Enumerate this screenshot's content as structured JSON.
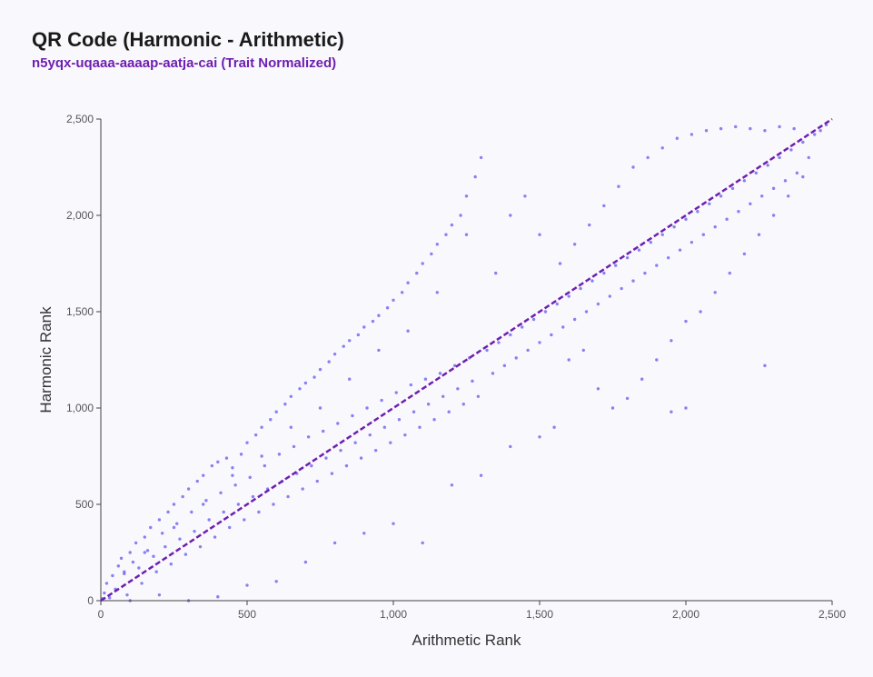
{
  "header": {
    "title": "QR Code (Harmonic - Arithmetic)",
    "subtitle": "n5yqx-uqaaa-aaaap-aatja-cai (Trait Normalized)"
  },
  "colors": {
    "points": "#6b63ee",
    "diagonal": "#6e1fb0",
    "axis": "#444444"
  },
  "chart_data": {
    "type": "scatter",
    "xlabel": "Arithmetic Rank",
    "ylabel": "Harmonic Rank",
    "xlim": [
      0,
      2500
    ],
    "ylim": [
      0,
      2500
    ],
    "xticks": [
      0,
      500,
      1000,
      1500,
      2000,
      2500
    ],
    "yticks": [
      0,
      500,
      1000,
      1500,
      2000,
      2500
    ],
    "xtick_labels": [
      "0",
      "500",
      "1,000",
      "1,500",
      "2,000",
      "2,500"
    ],
    "ytick_labels": [
      "0",
      "500",
      "1,000",
      "1,500",
      "2,000",
      "2,500"
    ],
    "reference_line": {
      "x": [
        0,
        2500
      ],
      "y": [
        0,
        2500
      ],
      "style": "dashed"
    },
    "grid": false,
    "series": [
      {
        "points": [
          [
            5,
            10
          ],
          [
            12,
            40
          ],
          [
            20,
            90
          ],
          [
            30,
            15
          ],
          [
            40,
            130
          ],
          [
            50,
            60
          ],
          [
            60,
            180
          ],
          [
            70,
            220
          ],
          [
            80,
            140
          ],
          [
            90,
            30
          ],
          [
            100,
            250
          ],
          [
            110,
            200
          ],
          [
            120,
            300
          ],
          [
            130,
            170
          ],
          [
            140,
            90
          ],
          [
            150,
            330
          ],
          [
            160,
            260
          ],
          [
            170,
            380
          ],
          [
            180,
            230
          ],
          [
            190,
            150
          ],
          [
            200,
            420
          ],
          [
            210,
            350
          ],
          [
            220,
            280
          ],
          [
            230,
            460
          ],
          [
            240,
            190
          ],
          [
            250,
            500
          ],
          [
            260,
            400
          ],
          [
            270,
            320
          ],
          [
            280,
            540
          ],
          [
            290,
            240
          ],
          [
            300,
            580
          ],
          [
            310,
            460
          ],
          [
            320,
            360
          ],
          [
            330,
            620
          ],
          [
            340,
            280
          ],
          [
            350,
            650
          ],
          [
            360,
            520
          ],
          [
            370,
            420
          ],
          [
            380,
            700
          ],
          [
            390,
            330
          ],
          [
            400,
            720
          ],
          [
            410,
            560
          ],
          [
            420,
            460
          ],
          [
            430,
            740
          ],
          [
            440,
            380
          ],
          [
            450,
            690
          ],
          [
            460,
            600
          ],
          [
            470,
            500
          ],
          [
            480,
            760
          ],
          [
            490,
            420
          ],
          [
            500,
            820
          ],
          [
            510,
            640
          ],
          [
            520,
            540
          ],
          [
            530,
            860
          ],
          [
            540,
            460
          ],
          [
            550,
            900
          ],
          [
            560,
            700
          ],
          [
            570,
            580
          ],
          [
            580,
            940
          ],
          [
            590,
            500
          ],
          [
            600,
            980
          ],
          [
            610,
            760
          ],
          [
            620,
            620
          ],
          [
            630,
            1020
          ],
          [
            640,
            540
          ],
          [
            650,
            1060
          ],
          [
            660,
            800
          ],
          [
            670,
            660
          ],
          [
            680,
            1100
          ],
          [
            690,
            580
          ],
          [
            700,
            1130
          ],
          [
            710,
            850
          ],
          [
            720,
            700
          ],
          [
            730,
            1160
          ],
          [
            740,
            620
          ],
          [
            750,
            1200
          ],
          [
            760,
            880
          ],
          [
            770,
            740
          ],
          [
            780,
            1240
          ],
          [
            790,
            660
          ],
          [
            800,
            1280
          ],
          [
            810,
            920
          ],
          [
            820,
            780
          ],
          [
            830,
            1320
          ],
          [
            840,
            700
          ],
          [
            850,
            1350
          ],
          [
            860,
            960
          ],
          [
            870,
            820
          ],
          [
            880,
            1380
          ],
          [
            890,
            740
          ],
          [
            900,
            1420
          ],
          [
            910,
            1000
          ],
          [
            920,
            860
          ],
          [
            930,
            1450
          ],
          [
            940,
            780
          ],
          [
            950,
            1480
          ],
          [
            960,
            1040
          ],
          [
            970,
            900
          ],
          [
            980,
            1520
          ],
          [
            990,
            820
          ],
          [
            1000,
            1560
          ],
          [
            1010,
            1080
          ],
          [
            1020,
            940
          ],
          [
            1030,
            1600
          ],
          [
            1040,
            860
          ],
          [
            1050,
            1650
          ],
          [
            1060,
            1120
          ],
          [
            1070,
            980
          ],
          [
            1080,
            1700
          ],
          [
            1090,
            900
          ],
          [
            1100,
            1750
          ],
          [
            1110,
            1150
          ],
          [
            1120,
            1020
          ],
          [
            1130,
            1800
          ],
          [
            1140,
            940
          ],
          [
            1150,
            1850
          ],
          [
            1160,
            1180
          ],
          [
            1170,
            1060
          ],
          [
            1180,
            1900
          ],
          [
            1190,
            980
          ],
          [
            1200,
            1950
          ],
          [
            1210,
            1220
          ],
          [
            1220,
            1100
          ],
          [
            1230,
            2000
          ],
          [
            1240,
            1020
          ],
          [
            1250,
            2100
          ],
          [
            1260,
            1260
          ],
          [
            1270,
            1140
          ],
          [
            1280,
            2200
          ],
          [
            1290,
            1060
          ],
          [
            1300,
            2300
          ],
          [
            1320,
            1300
          ],
          [
            1340,
            1180
          ],
          [
            1360,
            1340
          ],
          [
            1380,
            1220
          ],
          [
            1400,
            1380
          ],
          [
            1420,
            1260
          ],
          [
            1440,
            1420
          ],
          [
            1460,
            1300
          ],
          [
            1480,
            1460
          ],
          [
            1500,
            1340
          ],
          [
            1520,
            1500
          ],
          [
            1540,
            1380
          ],
          [
            1560,
            1540
          ],
          [
            1580,
            1420
          ],
          [
            1600,
            1580
          ],
          [
            1620,
            1460
          ],
          [
            1640,
            1620
          ],
          [
            1660,
            1500
          ],
          [
            1680,
            1660
          ],
          [
            1700,
            1540
          ],
          [
            1720,
            1700
          ],
          [
            1740,
            1580
          ],
          [
            1760,
            1740
          ],
          [
            1780,
            1620
          ],
          [
            1800,
            1780
          ],
          [
            1820,
            1660
          ],
          [
            1840,
            1820
          ],
          [
            1860,
            1700
          ],
          [
            1880,
            1860
          ],
          [
            1900,
            1740
          ],
          [
            1920,
            1900
          ],
          [
            1940,
            1780
          ],
          [
            1960,
            1940
          ],
          [
            1980,
            1820
          ],
          [
            2000,
            1980
          ],
          [
            2020,
            1860
          ],
          [
            2040,
            2020
          ],
          [
            2060,
            1900
          ],
          [
            2080,
            2060
          ],
          [
            2100,
            1940
          ],
          [
            2120,
            2100
          ],
          [
            2140,
            1980
          ],
          [
            2160,
            2140
          ],
          [
            2180,
            2020
          ],
          [
            2200,
            2180
          ],
          [
            2220,
            2060
          ],
          [
            2240,
            2220
          ],
          [
            2260,
            2100
          ],
          [
            2280,
            2260
          ],
          [
            2300,
            2140
          ],
          [
            2320,
            2300
          ],
          [
            2340,
            2180
          ],
          [
            2360,
            2340
          ],
          [
            2380,
            2220
          ],
          [
            2400,
            2380
          ],
          [
            2420,
            2300
          ],
          [
            2440,
            2420
          ],
          [
            2460,
            2440
          ],
          [
            2480,
            2470
          ],
          [
            1600,
            1250
          ],
          [
            1650,
            1300
          ],
          [
            1700,
            1100
          ],
          [
            1750,
            1000
          ],
          [
            1800,
            1050
          ],
          [
            1850,
            1150
          ],
          [
            1900,
            1250
          ],
          [
            1950,
            1350
          ],
          [
            2000,
            1450
          ],
          [
            2050,
            1500
          ],
          [
            2100,
            1600
          ],
          [
            2150,
            1700
          ],
          [
            2200,
            1800
          ],
          [
            2250,
            1900
          ],
          [
            2300,
            2000
          ],
          [
            2350,
            2100
          ],
          [
            2400,
            2200
          ],
          [
            2270,
            1220
          ],
          [
            2000,
            1000
          ],
          [
            1950,
            980
          ],
          [
            1100,
            300
          ],
          [
            1200,
            600
          ],
          [
            1300,
            650
          ],
          [
            1400,
            800
          ],
          [
            1500,
            850
          ],
          [
            1550,
            900
          ],
          [
            600,
            100
          ],
          [
            700,
            200
          ],
          [
            800,
            300
          ],
          [
            900,
            350
          ],
          [
            1000,
            400
          ],
          [
            300,
            0
          ],
          [
            400,
            20
          ],
          [
            500,
            80
          ],
          [
            200,
            30
          ],
          [
            100,
            0
          ],
          [
            1570,
            1750
          ],
          [
            1620,
            1850
          ],
          [
            1670,
            1950
          ],
          [
            1720,
            2050
          ],
          [
            1770,
            2150
          ],
          [
            1820,
            2250
          ],
          [
            1870,
            2300
          ],
          [
            1920,
            2350
          ],
          [
            1970,
            2400
          ],
          [
            2020,
            2420
          ],
          [
            2070,
            2440
          ],
          [
            2120,
            2450
          ],
          [
            2170,
            2460
          ],
          [
            2220,
            2450
          ],
          [
            2270,
            2440
          ],
          [
            2320,
            2460
          ],
          [
            2370,
            2450
          ],
          [
            1400,
            2000
          ],
          [
            1450,
            2100
          ],
          [
            1500,
            1900
          ],
          [
            1350,
            1700
          ],
          [
            1250,
            1900
          ],
          [
            1150,
            1600
          ],
          [
            1050,
            1400
          ],
          [
            950,
            1300
          ],
          [
            850,
            1150
          ],
          [
            750,
            1000
          ],
          [
            650,
            900
          ],
          [
            550,
            750
          ],
          [
            450,
            650
          ],
          [
            350,
            500
          ],
          [
            250,
            380
          ],
          [
            150,
            250
          ],
          [
            80,
            150
          ]
        ]
      }
    ]
  }
}
